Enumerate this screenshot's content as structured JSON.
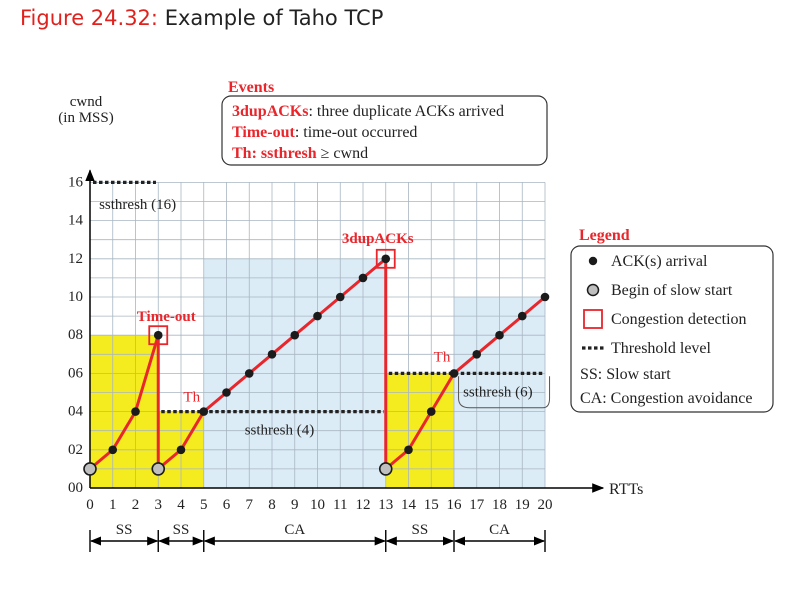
{
  "figure": {
    "number": "Figure 24.32:",
    "caption": "Example of Taho TCP"
  },
  "colors": {
    "accent": "#e0221f",
    "red": "#e8262b",
    "yellow": "#f4ec1e",
    "lightblue": "#dcecf7",
    "grid": "#a8b6c2"
  },
  "chart_data": {
    "type": "line",
    "ylabel": "cwnd",
    "ylabel_unit": "(in MSS)",
    "xlabel": "RTTs",
    "xlim": [
      0,
      20
    ],
    "ylim": [
      0,
      16
    ],
    "x_ticks": [
      "0",
      "1",
      "2",
      "3",
      "4",
      "5",
      "6",
      "7",
      "8",
      "9",
      "10",
      "11",
      "12",
      "13",
      "14",
      "15",
      "16",
      "17",
      "18",
      "19",
      "20"
    ],
    "y_ticks": [
      "00",
      "02",
      "04",
      "06",
      "08",
      "10",
      "12",
      "14",
      "16"
    ],
    "series": [
      {
        "segment": 1,
        "points": [
          [
            0,
            1
          ],
          [
            1,
            2
          ],
          [
            2,
            4
          ],
          [
            3,
            8
          ]
        ]
      },
      {
        "segment": 2,
        "points": [
          [
            3,
            1
          ],
          [
            4,
            2
          ],
          [
            5,
            4
          ],
          [
            6,
            5
          ],
          [
            7,
            6
          ],
          [
            8,
            7
          ],
          [
            9,
            8
          ],
          [
            10,
            9
          ],
          [
            11,
            10
          ],
          [
            12,
            11
          ],
          [
            13,
            12
          ]
        ]
      },
      {
        "segment": 3,
        "points": [
          [
            13,
            1
          ],
          [
            14,
            2
          ],
          [
            15,
            4
          ],
          [
            16,
            6
          ],
          [
            17,
            7
          ],
          [
            18,
            8
          ],
          [
            19,
            9
          ],
          [
            20,
            10
          ]
        ]
      }
    ],
    "drops": [
      [
        3,
        8,
        3,
        1
      ],
      [
        13,
        12,
        13,
        1
      ]
    ],
    "slow_start_begins": [
      [
        0,
        1
      ],
      [
        3,
        1
      ],
      [
        13,
        1
      ]
    ],
    "congestion_detections": [
      [
        3,
        8
      ],
      [
        13,
        12
      ]
    ],
    "threshold_levels": [
      {
        "label": "ssthresh (16)",
        "from": 0,
        "to": 3,
        "value": 16
      },
      {
        "label": "ssthresh (4)",
        "from": 3,
        "to": 13,
        "value": 4
      },
      {
        "label": "ssthresh (6)",
        "from": 13,
        "to": 20,
        "value": 6
      }
    ],
    "regions": [
      {
        "type": "SS",
        "from": 0,
        "to": 3,
        "height": 8
      },
      {
        "type": "SS",
        "from": 3,
        "to": 5,
        "height": 4
      },
      {
        "type": "CA",
        "from": 5,
        "to": 13,
        "height": 12
      },
      {
        "type": "SS",
        "from": 13,
        "to": 16,
        "height": 6
      },
      {
        "type": "CA",
        "from": 16,
        "to": 20,
        "height": 10
      }
    ],
    "phases": [
      {
        "label": "SS",
        "from": 0,
        "to": 3
      },
      {
        "label": "SS",
        "from": 3,
        "to": 5
      },
      {
        "label": "CA",
        "from": 5,
        "to": 13
      },
      {
        "label": "SS",
        "from": 13,
        "to": 16
      },
      {
        "label": "CA",
        "from": 16,
        "to": 20
      }
    ],
    "annotations": [
      {
        "text": "Time-out",
        "x": 3,
        "y": 8
      },
      {
        "text": "Th",
        "x": 5,
        "y": 4
      },
      {
        "text": "3dupACKs",
        "x": 13,
        "y": 12
      },
      {
        "text": "Th",
        "x": 16,
        "y": 6
      }
    ],
    "events_box": {
      "title": "Events",
      "items": [
        {
          "key": "3dupACKs",
          "desc": ": three duplicate ACKs arrived"
        },
        {
          "key": "Time-out",
          "desc": ": time-out occurred"
        },
        {
          "key": "Th: ssthresh",
          "desc": " ≥  cwnd"
        }
      ]
    },
    "legend": {
      "title": "Legend",
      "items": [
        {
          "symbol": "dot",
          "label": "ACK(s) arrival"
        },
        {
          "symbol": "gray-dot",
          "label": "Begin of slow start"
        },
        {
          "symbol": "red-square",
          "label": "Congestion detection"
        },
        {
          "symbol": "dashes",
          "label": "Threshold level"
        },
        {
          "symbol": "none",
          "label": "SS: Slow start"
        },
        {
          "symbol": "none",
          "label": "CA: Congestion avoidance"
        }
      ]
    }
  }
}
